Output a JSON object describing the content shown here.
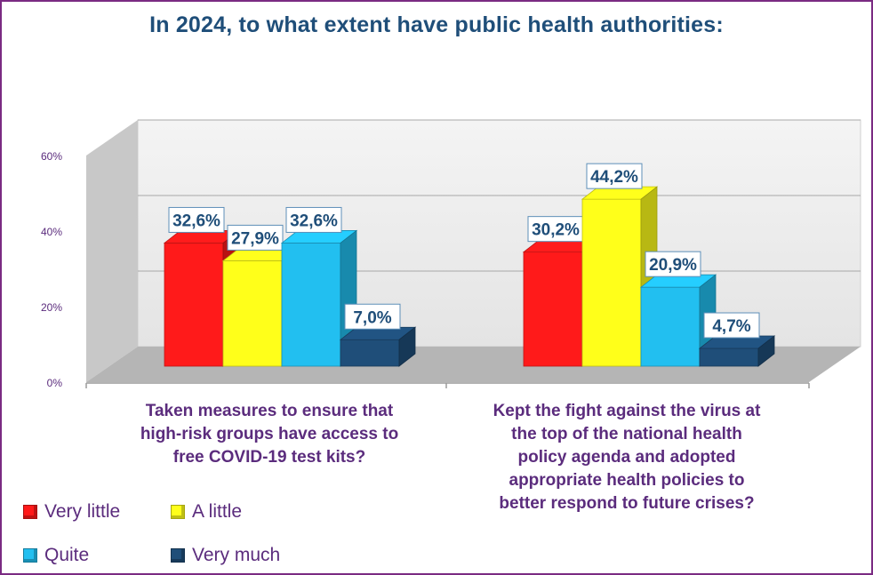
{
  "title": "In 2024, to what extent have public health authorities:",
  "colors": {
    "very_little": "#ff1a1a",
    "a_little": "#ffff1a",
    "quite": "#22bff0",
    "very_much": "#1f4e79",
    "frame": "#7a2a82",
    "label_text": "#5b2c7d",
    "value_text": "#1f4e79"
  },
  "legend": [
    {
      "label": "Very little",
      "color": "#ff1a1a"
    },
    {
      "label": "A little",
      "color": "#ffff1a"
    },
    {
      "label": "Quite",
      "color": "#22bff0"
    },
    {
      "label": "Very much",
      "color": "#1f4e79"
    }
  ],
  "chart_data": {
    "type": "bar",
    "title": "In 2024, to what extent have public health authorities:",
    "categories": [
      "Taken measures to ensure that high-risk groups have access to free COVID-19 test kits?",
      "Kept the fight against the virus at the top of the national health policy agenda and adopted appropriate health policies to better respond to future crises?"
    ],
    "category_lines": [
      [
        "Taken measures to ensure that",
        "high-risk groups have access to",
        "free COVID-19 test kits?"
      ],
      [
        "Kept the fight against the virus at",
        "the top of the national health",
        "policy agenda and adopted",
        "appropriate health policies to",
        "better respond to future crises?"
      ]
    ],
    "series": [
      {
        "name": "Very little",
        "values": [
          32.6,
          30.2
        ],
        "labels": [
          "32,6%",
          "30,2%"
        ]
      },
      {
        "name": "A little",
        "values": [
          27.9,
          44.2
        ],
        "labels": [
          "27,9%",
          "44,2%"
        ]
      },
      {
        "name": "Quite",
        "values": [
          32.6,
          20.9
        ],
        "labels": [
          "32,6%",
          "20,9%"
        ]
      },
      {
        "name": "Very much",
        "values": [
          7.0,
          4.7
        ],
        "labels": [
          "7,0%",
          "4,7%"
        ]
      }
    ],
    "yticks": [
      "0%",
      "20%",
      "40%",
      "60%"
    ],
    "ytick_values": [
      0,
      20,
      40,
      60
    ],
    "ylim": [
      0,
      60
    ],
    "grid": true,
    "legend_position": "bottom-left"
  }
}
